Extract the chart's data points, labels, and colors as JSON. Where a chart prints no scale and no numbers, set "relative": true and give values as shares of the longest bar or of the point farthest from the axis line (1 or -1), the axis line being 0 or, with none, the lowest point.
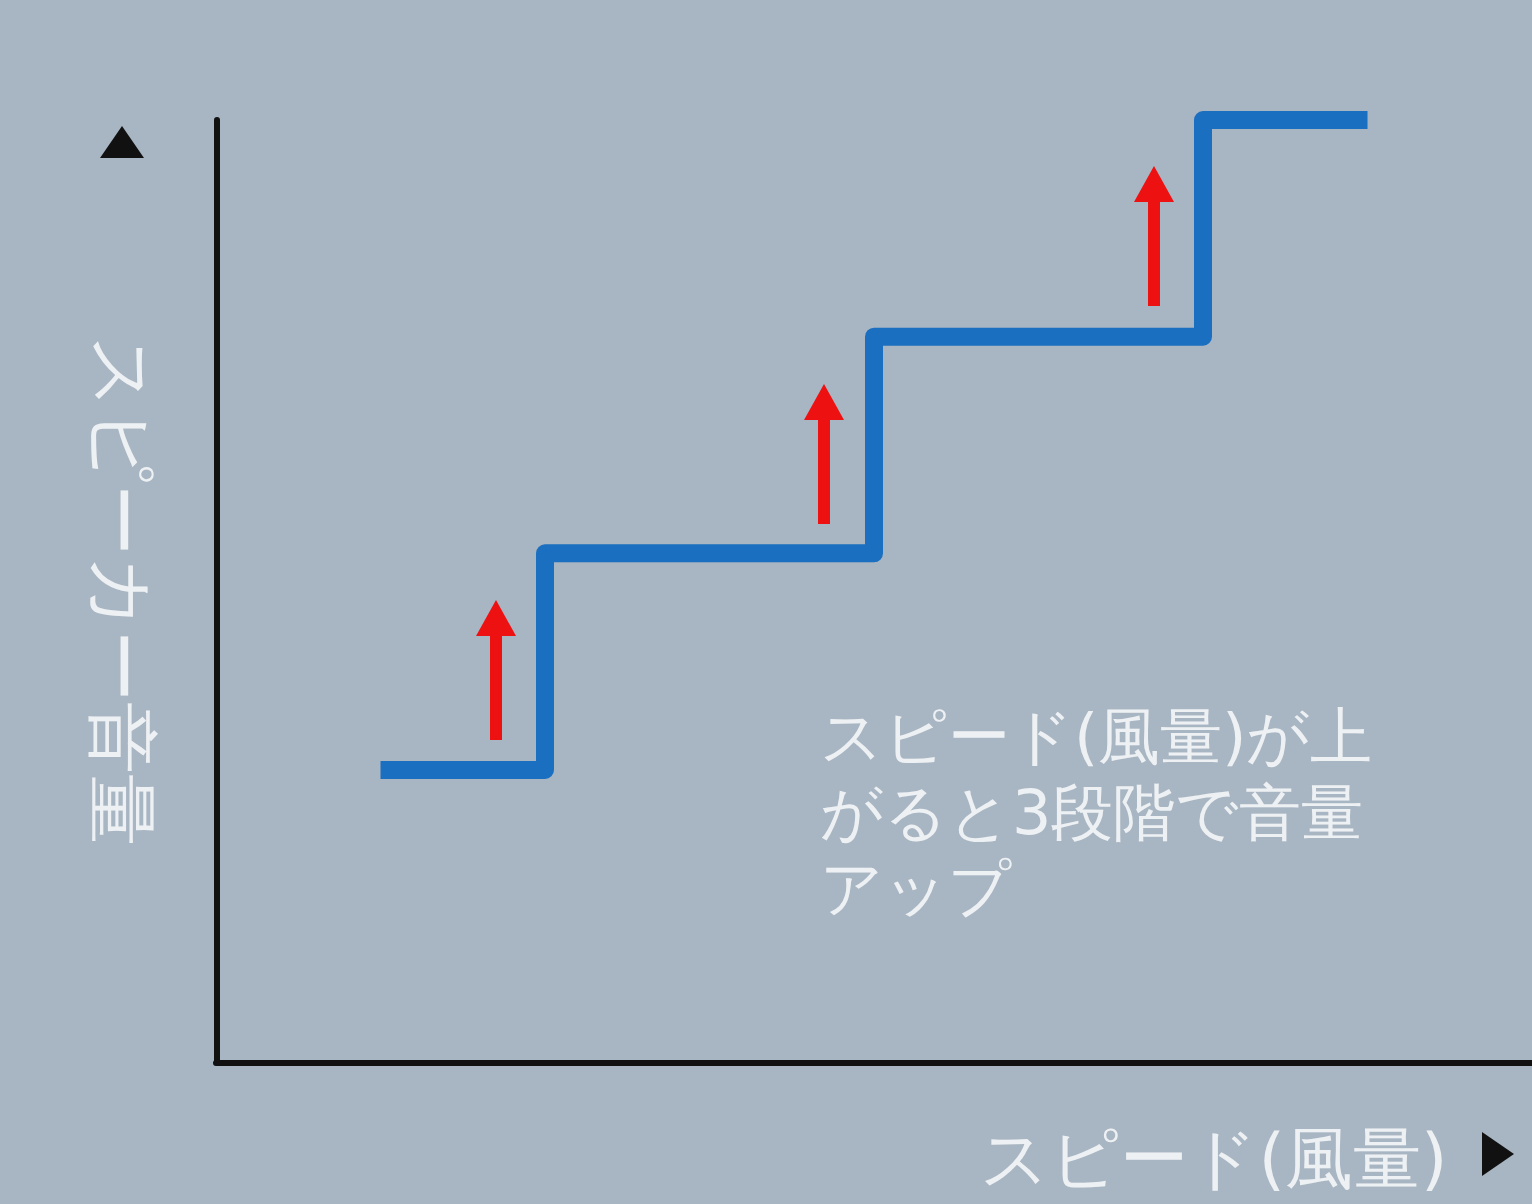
{
  "chart_data": {
    "type": "step",
    "relative": true,
    "xlabel": "スピード(風量)",
    "ylabel": "スピーカー音量",
    "categories": [
      null,
      null,
      null,
      null
    ],
    "values": [
      0.31,
      0.54,
      0.77,
      1
    ],
    "color": "#1a6fc0",
    "annotations": [
      "スピード(風量)が上がると3段階で音量アップ"
    ]
  }
}
